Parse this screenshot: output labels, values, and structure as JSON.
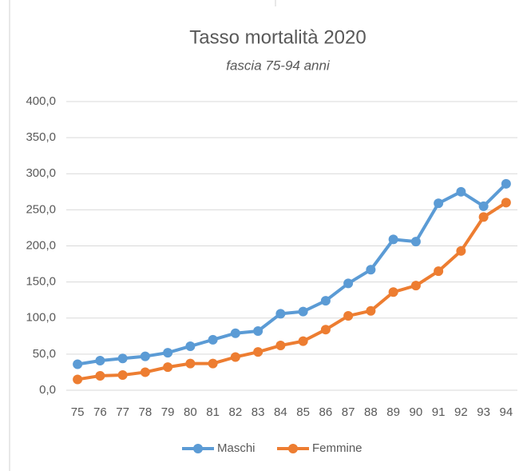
{
  "chart_data": {
    "type": "line",
    "title": "Tasso mortalità 2020",
    "subtitle": "fascia 75-94 anni",
    "categories": [
      "75",
      "76",
      "77",
      "78",
      "79",
      "80",
      "81",
      "82",
      "83",
      "84",
      "85",
      "86",
      "87",
      "88",
      "89",
      "90",
      "91",
      "92",
      "93",
      "94"
    ],
    "series": [
      {
        "name": "Maschi",
        "color": "#5b9bd5",
        "values": [
          36,
          41,
          44,
          47,
          52,
          61,
          70,
          79,
          82,
          106,
          109,
          124,
          148,
          167,
          209,
          206,
          259,
          275,
          255,
          286
        ]
      },
      {
        "name": "Femmine",
        "color": "#ed7d31",
        "values": [
          15,
          20,
          21,
          25,
          32,
          37,
          37,
          46,
          53,
          62,
          68,
          84,
          103,
          110,
          136,
          145,
          165,
          193,
          240,
          260
        ]
      }
    ],
    "ylim": [
      0,
      400
    ],
    "yticks": [
      {
        "value": 0,
        "label": "0,0"
      },
      {
        "value": 50,
        "label": "50,0"
      },
      {
        "value": 100,
        "label": "100,0"
      },
      {
        "value": 150,
        "label": "150,0"
      },
      {
        "value": 200,
        "label": "200,0"
      },
      {
        "value": 250,
        "label": "250,0"
      },
      {
        "value": 300,
        "label": "300,0"
      },
      {
        "value": 350,
        "label": "350,0"
      },
      {
        "value": 400,
        "label": "400,0"
      }
    ],
    "grid": true,
    "legend": "bottom"
  }
}
